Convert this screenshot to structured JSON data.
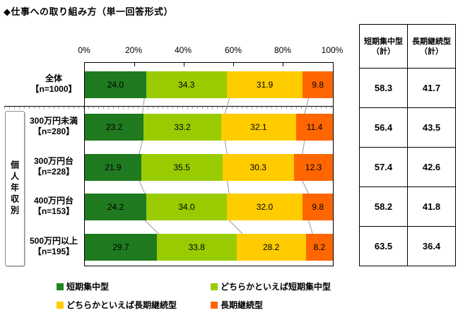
{
  "page": {
    "title": "◆仕事への取り組み方（単一回答形式）"
  },
  "chart_data": {
    "type": "bar",
    "variant": "horizontal-stacked-100pct",
    "x_axis": {
      "ticks": [
        "0%",
        "20%",
        "40%",
        "60%",
        "80%",
        "100%"
      ],
      "range": [
        0,
        100
      ],
      "unit": "%",
      "inner_tick_positions": [
        20,
        40,
        60,
        80
      ]
    },
    "group_label": "個人年収別",
    "series": [
      {
        "name": "短期集中型",
        "color": "#1e851e"
      },
      {
        "name": "どちらかといえば短期集中型",
        "color": "#99cc00"
      },
      {
        "name": "どちらかといえば長期継続型",
        "color": "#ffcc00"
      },
      {
        "name": "長期継続型",
        "color": "#ff6600"
      }
    ],
    "rows": [
      {
        "label": "全体",
        "n_label": "【n=1000】",
        "values": [
          24.0,
          34.3,
          31.9,
          9.8
        ]
      },
      {
        "label": "300万円未満",
        "n_label": "【n=280】",
        "values": [
          23.2,
          33.2,
          32.1,
          11.4
        ]
      },
      {
        "label": "300万円台",
        "n_label": "【n=228】",
        "values": [
          21.9,
          35.5,
          30.3,
          12.3
        ]
      },
      {
        "label": "400万円台",
        "n_label": "【n=153】",
        "values": [
          24.2,
          34.0,
          32.0,
          9.8
        ]
      },
      {
        "label": "500万円以上",
        "n_label": "【n=195】",
        "values": [
          29.7,
          33.8,
          28.2,
          8.2
        ]
      }
    ]
  },
  "summary_table": {
    "headers": [
      {
        "title": "短期集中型",
        "suffix": "（計）"
      },
      {
        "title": "長期継続型",
        "suffix": "（計）"
      }
    ],
    "rows": [
      [
        58.3,
        41.7
      ],
      [
        56.4,
        43.5
      ],
      [
        57.4,
        42.6
      ],
      [
        58.2,
        41.8
      ],
      [
        63.5,
        36.4
      ]
    ]
  }
}
